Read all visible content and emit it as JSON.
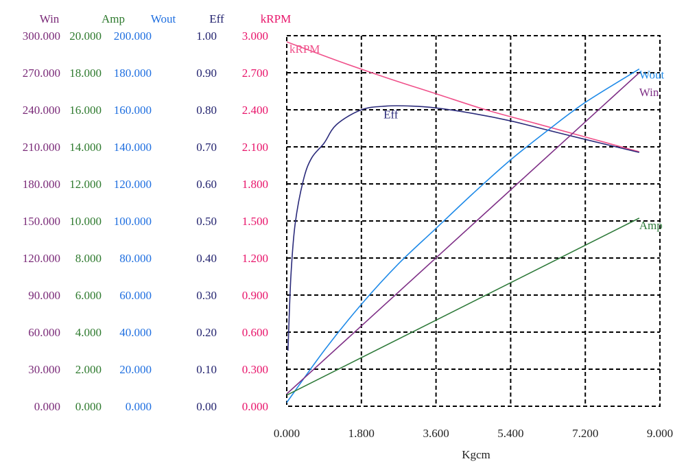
{
  "chart_data": {
    "type": "line",
    "title": "",
    "xlabel": "Kgcm",
    "xlim": [
      0,
      9
    ],
    "x_ticks": [
      "0.000",
      "1.800",
      "3.600",
      "5.400",
      "7.200",
      "9.000"
    ],
    "grid": true,
    "axes": [
      {
        "key": "win",
        "title": "Win",
        "color": "#7a2a78",
        "min": 0,
        "max": 300,
        "ticks": [
          "0.000",
          "30.000",
          "60.000",
          "90.000",
          "120.000",
          "150.000",
          "180.000",
          "210.000",
          "240.000",
          "270.000",
          "300.000"
        ]
      },
      {
        "key": "amp",
        "title": "Amp",
        "color": "#2e7a2e",
        "min": 0,
        "max": 20,
        "ticks": [
          "0.000",
          "2.000",
          "4.000",
          "6.000",
          "8.000",
          "10.000",
          "12.000",
          "14.000",
          "16.000",
          "18.000",
          "20.000"
        ]
      },
      {
        "key": "wout",
        "title": "Wout",
        "color": "#1f6fe0",
        "min": 0,
        "max": 200,
        "ticks": [
          "0.000",
          "20.000",
          "40.000",
          "60.000",
          "80.000",
          "100.000",
          "120.000",
          "140.000",
          "160.000",
          "180.000",
          "200.000"
        ]
      },
      {
        "key": "eff",
        "title": "Eff",
        "color": "#22226e",
        "min": 0,
        "max": 1,
        "ticks": [
          "0.00",
          "0.10",
          "0.20",
          "0.30",
          "0.40",
          "0.50",
          "0.60",
          "0.70",
          "0.80",
          "0.90",
          "1.00"
        ]
      },
      {
        "key": "krpm",
        "title": "kRPM",
        "color": "#e8146a",
        "min": 0,
        "max": 3,
        "ticks": [
          "0.000",
          "0.300",
          "0.600",
          "0.900",
          "1.200",
          "1.500",
          "1.800",
          "2.100",
          "2.400",
          "2.700",
          "3.000"
        ]
      }
    ],
    "series": [
      {
        "name": "kRPM",
        "axis": "krpm",
        "color": "#f0508a",
        "points": [
          [
            0,
            2.95
          ],
          [
            1.2,
            2.8
          ],
          [
            2.4,
            2.66
          ],
          [
            3.6,
            2.53
          ],
          [
            4.8,
            2.4
          ],
          [
            6.0,
            2.29
          ],
          [
            7.2,
            2.18
          ],
          [
            8.5,
            2.06
          ]
        ]
      },
      {
        "name": "Eff",
        "axis": "eff",
        "color": "#2a2a7a",
        "points": [
          [
            0.03,
            0.15
          ],
          [
            0.1,
            0.35
          ],
          [
            0.2,
            0.49
          ],
          [
            0.4,
            0.61
          ],
          [
            0.6,
            0.67
          ],
          [
            0.9,
            0.71
          ],
          [
            1.2,
            0.76
          ],
          [
            1.8,
            0.8
          ],
          [
            2.4,
            0.81
          ],
          [
            3.0,
            0.81
          ],
          [
            3.6,
            0.805
          ],
          [
            4.5,
            0.79
          ],
          [
            5.4,
            0.77
          ],
          [
            6.3,
            0.745
          ],
          [
            7.2,
            0.72
          ],
          [
            8.5,
            0.685
          ]
        ]
      },
      {
        "name": "Wout",
        "axis": "wout",
        "color": "#1e8ae8",
        "points": [
          [
            0,
            2
          ],
          [
            0.9,
            30
          ],
          [
            1.8,
            55
          ],
          [
            2.7,
            77
          ],
          [
            3.6,
            96
          ],
          [
            4.5,
            115
          ],
          [
            5.4,
            133
          ],
          [
            6.3,
            149
          ],
          [
            7.2,
            164
          ],
          [
            8.5,
            182
          ]
        ]
      },
      {
        "name": "Win",
        "axis": "win",
        "color": "#7e2f86",
        "points": [
          [
            0,
            10
          ],
          [
            8.5,
            270
          ]
        ]
      },
      {
        "name": "Amp",
        "axis": "amp",
        "color": "#2e7a3a",
        "points": [
          [
            0,
            0.6
          ],
          [
            8.5,
            10.15
          ]
        ]
      }
    ]
  }
}
